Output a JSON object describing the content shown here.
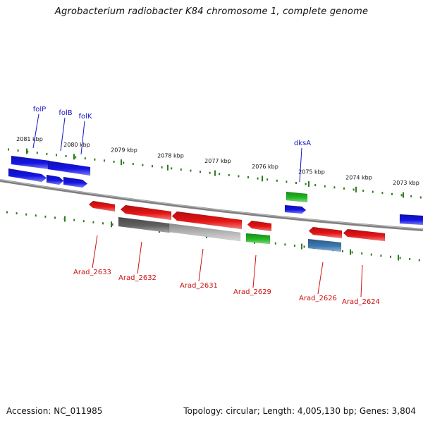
{
  "title": "Agrobacterium radiobacter K84 chromosome 1, complete genome",
  "footer": {
    "accession": "Accession: NC_011985",
    "summary": "Topology: circular; Length: 4,005,130 bp; Genes: 3,804"
  },
  "colors": {
    "tick": "#2e7d1e",
    "forward_gene": "#1414e6",
    "reverse_gene": "#e61414",
    "rna_gene": "#22b822",
    "pseudo_gene_dark": "#606060",
    "pseudo_gene_light": "#b8b8b8",
    "blue_gray_gene": "#3a78b0",
    "backbone": "#7f7f7f",
    "top_label": "#1414c8",
    "bottom_label": "#cc1010"
  },
  "kbp_labels": [
    "2081 kbp",
    "2080 kbp",
    "2079 kbp",
    "2078 kbp",
    "2077 kbp",
    "2076 kbp",
    "2075 kbp",
    "2074 kbp",
    "2073 kbp"
  ],
  "top_gene_labels": [
    "folP",
    "folB",
    "folK",
    "dksA"
  ],
  "bottom_gene_labels": [
    "Arad_2633",
    "Arad_2632",
    "Arad_2631",
    "Arad_2629",
    "Arad_2626",
    "Arad_2624"
  ]
}
